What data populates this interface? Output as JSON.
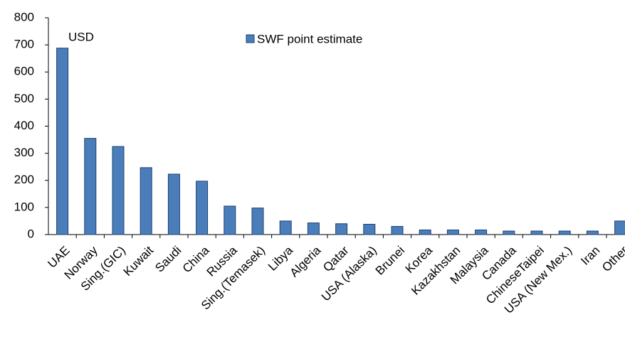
{
  "chart_data": {
    "type": "bar",
    "annotation": "USD",
    "categories": [
      "UAE",
      "Norway",
      "Sing.(GIC)",
      "Kuwait",
      "Saudi",
      "China",
      "Russia",
      "Sing.(Temasek)",
      "Libya",
      "Algeria",
      "Qatar",
      "USA (Alaska)",
      "Brunei",
      "Korea",
      "Kazakhstan",
      "Malaysia",
      "Canada",
      "ChineseTaipei",
      "USA (New Mex.)",
      "Iran",
      "Other"
    ],
    "series": [
      {
        "name": "SWF point estimate",
        "color": "#4a7ebb",
        "values": [
          688,
          355,
          325,
          247,
          223,
          197,
          105,
          98,
          50,
          43,
          40,
          38,
          30,
          17,
          17,
          17,
          13,
          13,
          13,
          13,
          50
        ]
      }
    ],
    "ylim": [
      0,
      800
    ],
    "yticks": [
      0,
      100,
      200,
      300,
      400,
      500,
      600,
      700,
      800
    ],
    "grid": false,
    "legend": "top"
  }
}
